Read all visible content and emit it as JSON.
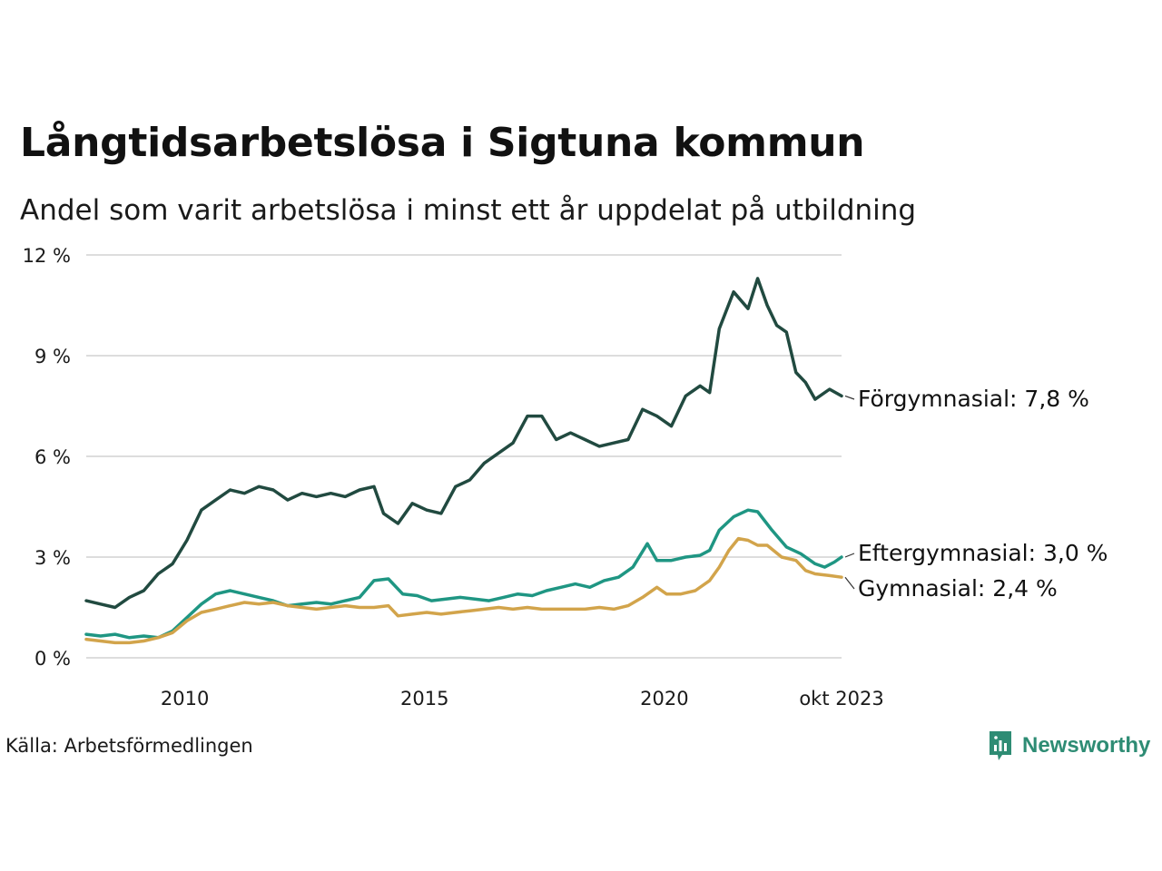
{
  "header": {
    "title": "Långtidsarbetslösa i Sigtuna kommun",
    "subtitle": "Andel som varit arbetslösa i minst ett år uppdelat på utbildning"
  },
  "footer": {
    "source": "Källa: Arbetsförmedlingen",
    "brand": "Newsworthy"
  },
  "colors": {
    "forgymnasial": "#214a40",
    "eftergymnasial": "#1f9683",
    "gymnasial": "#d2a44b",
    "grid": "#dddddd",
    "brand": "#2e8c74"
  },
  "chart_data": {
    "type": "line",
    "title": "Långtidsarbetslösa i Sigtuna kommun",
    "subtitle": "Andel som varit arbetslösa i minst ett år uppdelat på utbildning",
    "xlabel": "",
    "ylabel": "",
    "x_range": [
      2008.0,
      2023.75
    ],
    "ylim": [
      0,
      12
    ],
    "y_ticks": [
      0,
      3,
      6,
      9,
      12
    ],
    "y_tick_labels": [
      "0 %",
      "3 %",
      "6 %",
      "9 %",
      "12 %"
    ],
    "x_ticks": [
      2010,
      2015,
      2020,
      2023.75
    ],
    "x_tick_labels": [
      "2010",
      "2015",
      "2020",
      "okt 2023"
    ],
    "grid": true,
    "series": [
      {
        "name": "Förgymnasial",
        "key": "forgymnasial",
        "end_label": "Förgymnasial: 7,8 %",
        "points": [
          [
            2008.0,
            1.7
          ],
          [
            2008.3,
            1.6
          ],
          [
            2008.6,
            1.5
          ],
          [
            2008.9,
            1.8
          ],
          [
            2009.2,
            2.0
          ],
          [
            2009.5,
            2.5
          ],
          [
            2009.8,
            2.8
          ],
          [
            2010.1,
            3.5
          ],
          [
            2010.4,
            4.4
          ],
          [
            2010.7,
            4.7
          ],
          [
            2011.0,
            5.0
          ],
          [
            2011.3,
            4.9
          ],
          [
            2011.6,
            5.1
          ],
          [
            2011.9,
            5.0
          ],
          [
            2012.2,
            4.7
          ],
          [
            2012.5,
            4.9
          ],
          [
            2012.8,
            4.8
          ],
          [
            2013.1,
            4.9
          ],
          [
            2013.4,
            4.8
          ],
          [
            2013.7,
            5.0
          ],
          [
            2014.0,
            5.1
          ],
          [
            2014.2,
            4.3
          ],
          [
            2014.5,
            4.0
          ],
          [
            2014.8,
            4.6
          ],
          [
            2015.1,
            4.4
          ],
          [
            2015.4,
            4.3
          ],
          [
            2015.7,
            5.1
          ],
          [
            2016.0,
            5.3
          ],
          [
            2016.3,
            5.8
          ],
          [
            2016.6,
            6.1
          ],
          [
            2016.9,
            6.4
          ],
          [
            2017.2,
            7.2
          ],
          [
            2017.5,
            7.2
          ],
          [
            2017.8,
            6.5
          ],
          [
            2018.1,
            6.7
          ],
          [
            2018.4,
            6.5
          ],
          [
            2018.7,
            6.3
          ],
          [
            2019.0,
            6.4
          ],
          [
            2019.3,
            6.5
          ],
          [
            2019.6,
            7.4
          ],
          [
            2019.9,
            7.2
          ],
          [
            2020.2,
            6.9
          ],
          [
            2020.5,
            7.8
          ],
          [
            2020.8,
            8.1
          ],
          [
            2021.0,
            7.9
          ],
          [
            2021.2,
            9.8
          ],
          [
            2021.5,
            10.9
          ],
          [
            2021.8,
            10.4
          ],
          [
            2022.0,
            11.3
          ],
          [
            2022.2,
            10.5
          ],
          [
            2022.4,
            9.9
          ],
          [
            2022.6,
            9.7
          ],
          [
            2022.8,
            8.5
          ],
          [
            2023.0,
            8.2
          ],
          [
            2023.2,
            7.7
          ],
          [
            2023.5,
            8.0
          ],
          [
            2023.75,
            7.8
          ]
        ]
      },
      {
        "name": "Eftergymnasial",
        "key": "eftergymnasial",
        "end_label": "Eftergymnasial: 3,0 %",
        "points": [
          [
            2008.0,
            0.7
          ],
          [
            2008.3,
            0.65
          ],
          [
            2008.6,
            0.7
          ],
          [
            2008.9,
            0.6
          ],
          [
            2009.2,
            0.65
          ],
          [
            2009.5,
            0.6
          ],
          [
            2009.8,
            0.8
          ],
          [
            2010.1,
            1.2
          ],
          [
            2010.4,
            1.6
          ],
          [
            2010.7,
            1.9
          ],
          [
            2011.0,
            2.0
          ],
          [
            2011.3,
            1.9
          ],
          [
            2011.6,
            1.8
          ],
          [
            2011.9,
            1.7
          ],
          [
            2012.2,
            1.55
          ],
          [
            2012.5,
            1.6
          ],
          [
            2012.8,
            1.65
          ],
          [
            2013.1,
            1.6
          ],
          [
            2013.4,
            1.7
          ],
          [
            2013.7,
            1.8
          ],
          [
            2014.0,
            2.3
          ],
          [
            2014.3,
            2.35
          ],
          [
            2014.6,
            1.9
          ],
          [
            2014.9,
            1.85
          ],
          [
            2015.2,
            1.7
          ],
          [
            2015.5,
            1.75
          ],
          [
            2015.8,
            1.8
          ],
          [
            2016.1,
            1.75
          ],
          [
            2016.4,
            1.7
          ],
          [
            2016.7,
            1.8
          ],
          [
            2017.0,
            1.9
          ],
          [
            2017.3,
            1.85
          ],
          [
            2017.6,
            2.0
          ],
          [
            2017.9,
            2.1
          ],
          [
            2018.2,
            2.2
          ],
          [
            2018.5,
            2.1
          ],
          [
            2018.8,
            2.3
          ],
          [
            2019.1,
            2.4
          ],
          [
            2019.4,
            2.7
          ],
          [
            2019.7,
            3.4
          ],
          [
            2019.9,
            2.9
          ],
          [
            2020.2,
            2.9
          ],
          [
            2020.5,
            3.0
          ],
          [
            2020.8,
            3.05
          ],
          [
            2021.0,
            3.2
          ],
          [
            2021.2,
            3.8
          ],
          [
            2021.5,
            4.2
          ],
          [
            2021.8,
            4.4
          ],
          [
            2022.0,
            4.35
          ],
          [
            2022.3,
            3.8
          ],
          [
            2022.6,
            3.3
          ],
          [
            2022.9,
            3.1
          ],
          [
            2023.2,
            2.8
          ],
          [
            2023.4,
            2.7
          ],
          [
            2023.6,
            2.85
          ],
          [
            2023.75,
            3.0
          ]
        ]
      },
      {
        "name": "Gymnasial",
        "key": "gymnasial",
        "end_label": "Gymnasial: 2,4 %",
        "points": [
          [
            2008.0,
            0.55
          ],
          [
            2008.3,
            0.5
          ],
          [
            2008.6,
            0.45
          ],
          [
            2008.9,
            0.45
          ],
          [
            2009.2,
            0.5
          ],
          [
            2009.5,
            0.6
          ],
          [
            2009.8,
            0.75
          ],
          [
            2010.1,
            1.1
          ],
          [
            2010.4,
            1.35
          ],
          [
            2010.7,
            1.45
          ],
          [
            2011.0,
            1.55
          ],
          [
            2011.3,
            1.65
          ],
          [
            2011.6,
            1.6
          ],
          [
            2011.9,
            1.65
          ],
          [
            2012.2,
            1.55
          ],
          [
            2012.5,
            1.5
          ],
          [
            2012.8,
            1.45
          ],
          [
            2013.1,
            1.5
          ],
          [
            2013.4,
            1.55
          ],
          [
            2013.7,
            1.5
          ],
          [
            2014.0,
            1.5
          ],
          [
            2014.3,
            1.55
          ],
          [
            2014.5,
            1.25
          ],
          [
            2014.8,
            1.3
          ],
          [
            2015.1,
            1.35
          ],
          [
            2015.4,
            1.3
          ],
          [
            2015.7,
            1.35
          ],
          [
            2016.0,
            1.4
          ],
          [
            2016.3,
            1.45
          ],
          [
            2016.6,
            1.5
          ],
          [
            2016.9,
            1.45
          ],
          [
            2017.2,
            1.5
          ],
          [
            2017.5,
            1.45
          ],
          [
            2017.8,
            1.45
          ],
          [
            2018.1,
            1.45
          ],
          [
            2018.4,
            1.45
          ],
          [
            2018.7,
            1.5
          ],
          [
            2019.0,
            1.45
          ],
          [
            2019.3,
            1.55
          ],
          [
            2019.6,
            1.8
          ],
          [
            2019.9,
            2.1
          ],
          [
            2020.1,
            1.9
          ],
          [
            2020.4,
            1.9
          ],
          [
            2020.7,
            2.0
          ],
          [
            2021.0,
            2.3
          ],
          [
            2021.2,
            2.7
          ],
          [
            2021.4,
            3.2
          ],
          [
            2021.6,
            3.55
          ],
          [
            2021.8,
            3.5
          ],
          [
            2022.0,
            3.35
          ],
          [
            2022.2,
            3.35
          ],
          [
            2022.5,
            3.0
          ],
          [
            2022.8,
            2.9
          ],
          [
            2023.0,
            2.6
          ],
          [
            2023.2,
            2.5
          ],
          [
            2023.5,
            2.45
          ],
          [
            2023.75,
            2.4
          ]
        ]
      }
    ]
  }
}
